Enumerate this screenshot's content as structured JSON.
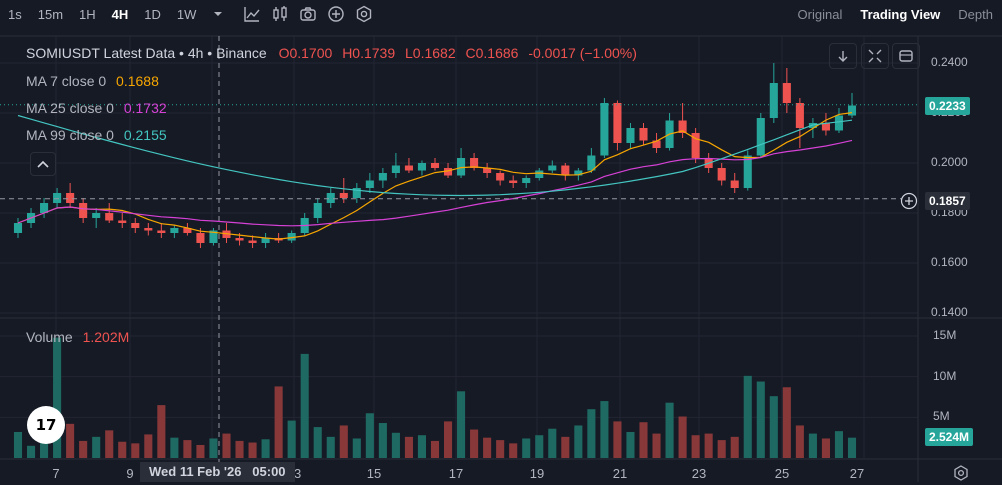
{
  "toolbar": {
    "timeframes": [
      "1s",
      "15m",
      "1H",
      "4H",
      "1D",
      "1W"
    ],
    "active_timeframe": "4H",
    "views": [
      "Original",
      "Trading View",
      "Depth"
    ],
    "active_view": "Trading View",
    "icons": [
      "chevron-down-icon",
      "indicator-icon",
      "candle-type-icon",
      "camera-icon",
      "plus-circle-icon",
      "settings-icon"
    ]
  },
  "legend": {
    "symbol": "SOMIUSDT Latest Data",
    "interval": "4h",
    "exchange": "Binance",
    "open": "O0.1700",
    "high": "H0.1739",
    "low": "L0.1682",
    "close": "C0.1686",
    "change": "-0.0017 (−1.00%)",
    "ma7_label": "MA 7 close 0",
    "ma7_value": "0.1688",
    "ma25_label": "MA 25 close 0",
    "ma25_value": "0.1732",
    "ma99_label": "MA 99 close 0",
    "ma99_value": "0.2155",
    "volume_label": "Volume",
    "volume_value": "1.202M"
  },
  "price_axis": {
    "ticks": [
      "0.2400",
      "0.2200",
      "0.2000",
      "0.1800",
      "0.1600",
      "0.1400"
    ],
    "last_price": "0.2233",
    "crosshair_price": "0.1857"
  },
  "volume_axis": {
    "ticks": [
      "15M",
      "10M",
      "5M"
    ],
    "last_volume": "2.524M"
  },
  "time_axis": {
    "labels": [
      "7",
      "9",
      "13",
      "15",
      "17",
      "19",
      "21",
      "23",
      "25",
      "27"
    ],
    "crosshair_time": "Wed 11 Feb '26   05:00"
  },
  "colors": {
    "up": "#26a69a",
    "down": "#ef5350",
    "ma7": "#f7a600",
    "ma25": "#d641d6",
    "ma99": "#43c5c0",
    "background": "#161a25"
  },
  "chart_data": {
    "type": "candlestick",
    "title": "SOMIUSDT Latest Data · 4h · Binance",
    "ylim": [
      0.14,
      0.25
    ],
    "candles": [
      [
        0.172,
        0.178,
        0.17,
        0.176
      ],
      [
        0.176,
        0.182,
        0.174,
        0.18
      ],
      [
        0.18,
        0.186,
        0.178,
        0.184
      ],
      [
        0.184,
        0.19,
        0.182,
        0.188
      ],
      [
        0.188,
        0.192,
        0.182,
        0.184
      ],
      [
        0.184,
        0.186,
        0.176,
        0.178
      ],
      [
        0.178,
        0.182,
        0.174,
        0.18
      ],
      [
        0.18,
        0.184,
        0.176,
        0.177
      ],
      [
        0.177,
        0.18,
        0.174,
        0.176
      ],
      [
        0.176,
        0.178,
        0.172,
        0.174
      ],
      [
        0.174,
        0.176,
        0.171,
        0.173
      ],
      [
        0.173,
        0.176,
        0.17,
        0.172
      ],
      [
        0.172,
        0.175,
        0.17,
        0.174
      ],
      [
        0.174,
        0.176,
        0.171,
        0.172
      ],
      [
        0.172,
        0.174,
        0.166,
        0.168
      ],
      [
        0.168,
        0.174,
        0.167,
        0.173
      ],
      [
        0.173,
        0.176,
        0.168,
        0.17
      ],
      [
        0.17,
        0.172,
        0.167,
        0.169
      ],
      [
        0.169,
        0.171,
        0.166,
        0.168
      ],
      [
        0.168,
        0.172,
        0.166,
        0.17
      ],
      [
        0.17,
        0.172,
        0.168,
        0.169
      ],
      [
        0.169,
        0.173,
        0.168,
        0.172
      ],
      [
        0.172,
        0.18,
        0.171,
        0.178
      ],
      [
        0.178,
        0.186,
        0.176,
        0.184
      ],
      [
        0.184,
        0.19,
        0.182,
        0.188
      ],
      [
        0.188,
        0.194,
        0.184,
        0.186
      ],
      [
        0.186,
        0.192,
        0.184,
        0.19
      ],
      [
        0.19,
        0.196,
        0.188,
        0.193
      ],
      [
        0.193,
        0.198,
        0.19,
        0.196
      ],
      [
        0.196,
        0.204,
        0.194,
        0.199
      ],
      [
        0.199,
        0.202,
        0.196,
        0.197
      ],
      [
        0.197,
        0.201,
        0.195,
        0.2
      ],
      [
        0.2,
        0.202,
        0.197,
        0.198
      ],
      [
        0.198,
        0.2,
        0.194,
        0.195
      ],
      [
        0.195,
        0.206,
        0.194,
        0.202
      ],
      [
        0.202,
        0.204,
        0.197,
        0.198
      ],
      [
        0.198,
        0.2,
        0.194,
        0.196
      ],
      [
        0.196,
        0.197,
        0.191,
        0.193
      ],
      [
        0.193,
        0.195,
        0.19,
        0.192
      ],
      [
        0.192,
        0.195,
        0.19,
        0.194
      ],
      [
        0.194,
        0.198,
        0.193,
        0.197
      ],
      [
        0.197,
        0.201,
        0.196,
        0.199
      ],
      [
        0.199,
        0.2,
        0.193,
        0.195
      ],
      [
        0.195,
        0.198,
        0.193,
        0.197
      ],
      [
        0.197,
        0.206,
        0.196,
        0.203
      ],
      [
        0.203,
        0.226,
        0.202,
        0.224
      ],
      [
        0.224,
        0.225,
        0.205,
        0.208
      ],
      [
        0.208,
        0.216,
        0.206,
        0.214
      ],
      [
        0.214,
        0.216,
        0.207,
        0.209
      ],
      [
        0.209,
        0.212,
        0.204,
        0.206
      ],
      [
        0.206,
        0.22,
        0.205,
        0.217
      ],
      [
        0.217,
        0.224,
        0.21,
        0.212
      ],
      [
        0.212,
        0.214,
        0.2,
        0.202
      ],
      [
        0.202,
        0.204,
        0.196,
        0.198
      ],
      [
        0.198,
        0.2,
        0.191,
        0.193
      ],
      [
        0.193,
        0.196,
        0.188,
        0.19
      ],
      [
        0.19,
        0.205,
        0.189,
        0.203
      ],
      [
        0.203,
        0.22,
        0.202,
        0.218
      ],
      [
        0.218,
        0.24,
        0.216,
        0.232
      ],
      [
        0.232,
        0.238,
        0.22,
        0.224
      ],
      [
        0.224,
        0.226,
        0.206,
        0.214
      ],
      [
        0.214,
        0.218,
        0.21,
        0.216
      ],
      [
        0.216,
        0.22,
        0.211,
        0.213
      ],
      [
        0.213,
        0.222,
        0.212,
        0.219
      ],
      [
        0.219,
        0.228,
        0.218,
        0.223
      ]
    ],
    "volumes": [
      3.2,
      1.5,
      2.4,
      14.8,
      4.2,
      2.1,
      2.6,
      3.4,
      2.0,
      1.8,
      2.9,
      6.5,
      2.5,
      2.2,
      1.6,
      2.4,
      3.0,
      2.1,
      1.9,
      2.3,
      8.8,
      4.6,
      12.8,
      3.8,
      2.6,
      4.0,
      2.4,
      5.5,
      4.3,
      3.1,
      2.6,
      2.8,
      2.1,
      4.5,
      8.2,
      3.5,
      2.5,
      2.2,
      1.8,
      2.4,
      2.8,
      3.6,
      2.6,
      4.0,
      6.0,
      7.0,
      4.5,
      3.2,
      4.4,
      3.0,
      6.8,
      5.1,
      2.8,
      3.0,
      2.2,
      2.6,
      10.1,
      9.4,
      7.6,
      8.7,
      4.0,
      3.0,
      2.4,
      3.3,
      2.5
    ],
    "volume_ylim": [
      0,
      16
    ]
  }
}
